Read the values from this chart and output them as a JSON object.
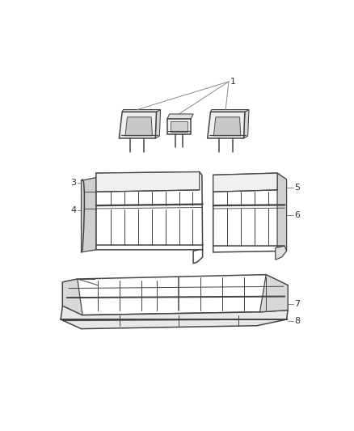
{
  "bg_color": "#ffffff",
  "line_color": "#444444",
  "label_color": "#333333",
  "figsize": [
    4.38,
    5.33
  ],
  "dpi": 100,
  "font_size": 8.0
}
